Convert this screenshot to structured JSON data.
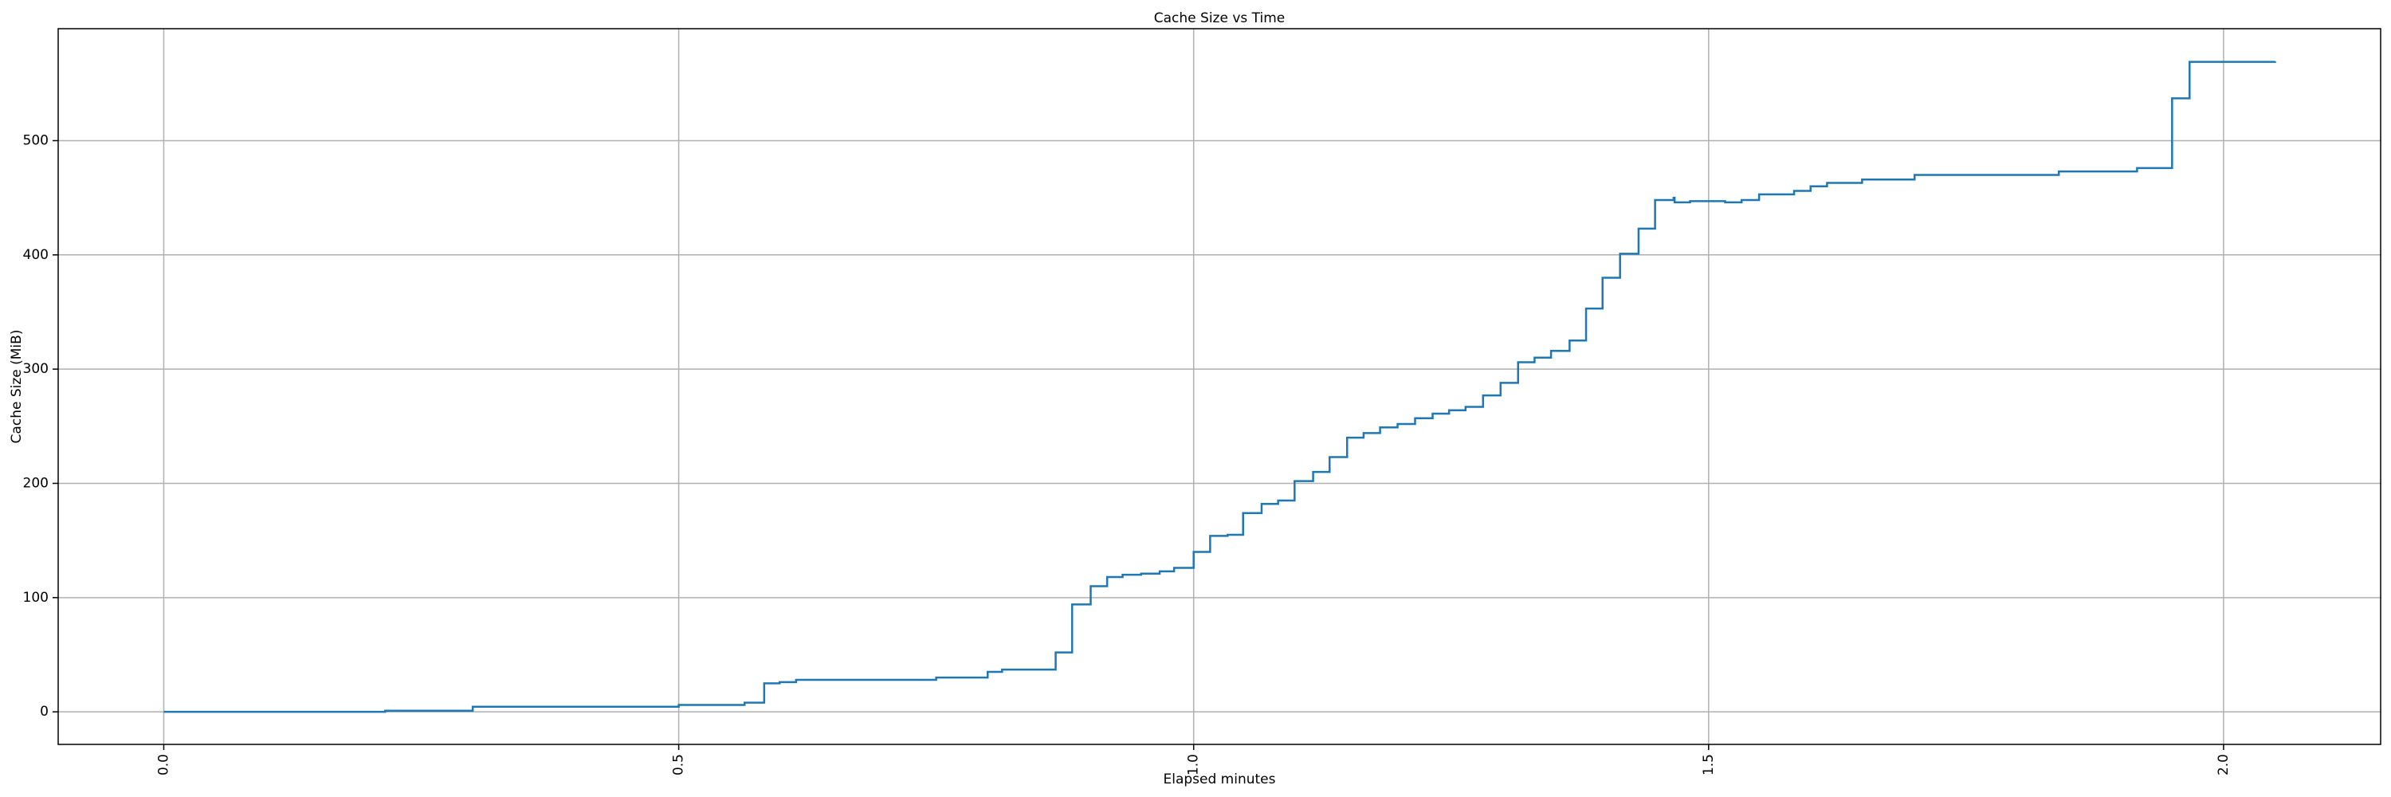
{
  "chart_data": {
    "type": "line",
    "step": "post",
    "title": "Cache Size vs Time",
    "x_label": "Elapsed minutes",
    "y_label": "Cache Size (MiB)",
    "color": "#1f77b4",
    "grid": true,
    "x": [
      0.0,
      0.215,
      0.3,
      0.5,
      0.564,
      0.583,
      0.598,
      0.614,
      0.75,
      0.8,
      0.814,
      0.866,
      0.882,
      0.9,
      0.916,
      0.931,
      0.949,
      0.967,
      0.981,
      1.0,
      1.016,
      1.033,
      1.048,
      1.066,
      1.082,
      1.098,
      1.116,
      1.132,
      1.149,
      1.165,
      1.181,
      1.198,
      1.215,
      1.232,
      1.248,
      1.264,
      1.281,
      1.298,
      1.315,
      1.331,
      1.347,
      1.365,
      1.381,
      1.397,
      1.414,
      1.432,
      1.448,
      1.466,
      1.467,
      1.482,
      1.516,
      1.532,
      1.549,
      1.583,
      1.599,
      1.615,
      1.649,
      1.7,
      1.84,
      1.916,
      1.95,
      1.967,
      2.05
    ],
    "values": [
      0,
      1,
      4.5,
      6,
      8,
      25,
      26,
      28,
      30,
      35,
      37,
      52,
      94,
      110,
      118,
      120,
      121,
      123,
      126,
      140,
      154,
      155,
      174,
      182,
      185,
      202,
      210,
      223,
      240,
      244,
      249,
      252,
      257,
      261,
      264,
      267,
      277,
      288,
      306,
      310,
      316,
      325,
      353,
      380,
      401,
      423,
      448,
      450,
      446,
      447,
      446,
      448,
      453,
      456,
      460,
      463,
      466,
      470,
      473,
      476,
      537,
      569,
      569.5
    ],
    "xlim": [
      -0.1025,
      2.1525
    ],
    "ylim": [
      -28.5,
      598
    ],
    "xticks": [
      {
        "value": 0,
        "label": "0.0"
      },
      {
        "value": 0.5,
        "label": "0.5"
      },
      {
        "value": 1,
        "label": "1.0"
      },
      {
        "value": 1.5,
        "label": "1.5"
      },
      {
        "value": 2,
        "label": "2.0"
      }
    ],
    "yticks": [
      0,
      100,
      200,
      300,
      400,
      500
    ]
  }
}
